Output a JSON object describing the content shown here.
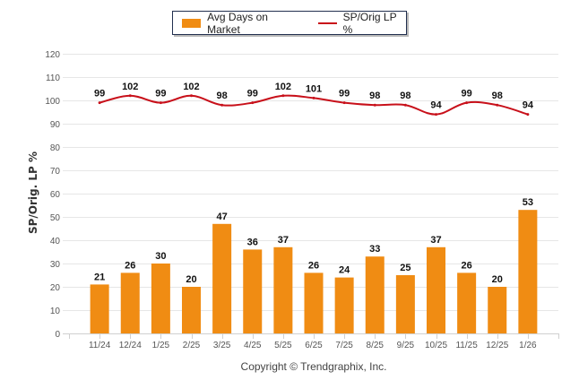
{
  "chart_data": {
    "type": "bar",
    "title": "",
    "xlabel": "",
    "ylabel": "SP/Orig. LP %",
    "ylim": [
      0,
      120
    ],
    "yticks": [
      0,
      10,
      20,
      30,
      40,
      50,
      60,
      70,
      80,
      90,
      100,
      110,
      120
    ],
    "grid": true,
    "legend_position": "top-center",
    "categories": [
      "11/24",
      "12/24",
      "1/25",
      "2/25",
      "3/25",
      "4/25",
      "5/25",
      "6/25",
      "7/25",
      "8/25",
      "9/25",
      "10/25",
      "11/25",
      "12/25",
      "1/26"
    ],
    "series": [
      {
        "name": "Avg Days on Market",
        "type": "bar",
        "color": "#f08c13",
        "values": [
          21,
          26,
          30,
          20,
          47,
          36,
          37,
          26,
          24,
          33,
          25,
          37,
          26,
          20,
          53
        ]
      },
      {
        "name": "SP/Orig LP %",
        "type": "line",
        "color": "#c8101a",
        "values": [
          99,
          102,
          99,
          102,
          98,
          99,
          102,
          101,
          99,
          98,
          98,
          94,
          99,
          98,
          94
        ]
      }
    ],
    "footer": "Copyright © Trendgraphix, Inc."
  }
}
